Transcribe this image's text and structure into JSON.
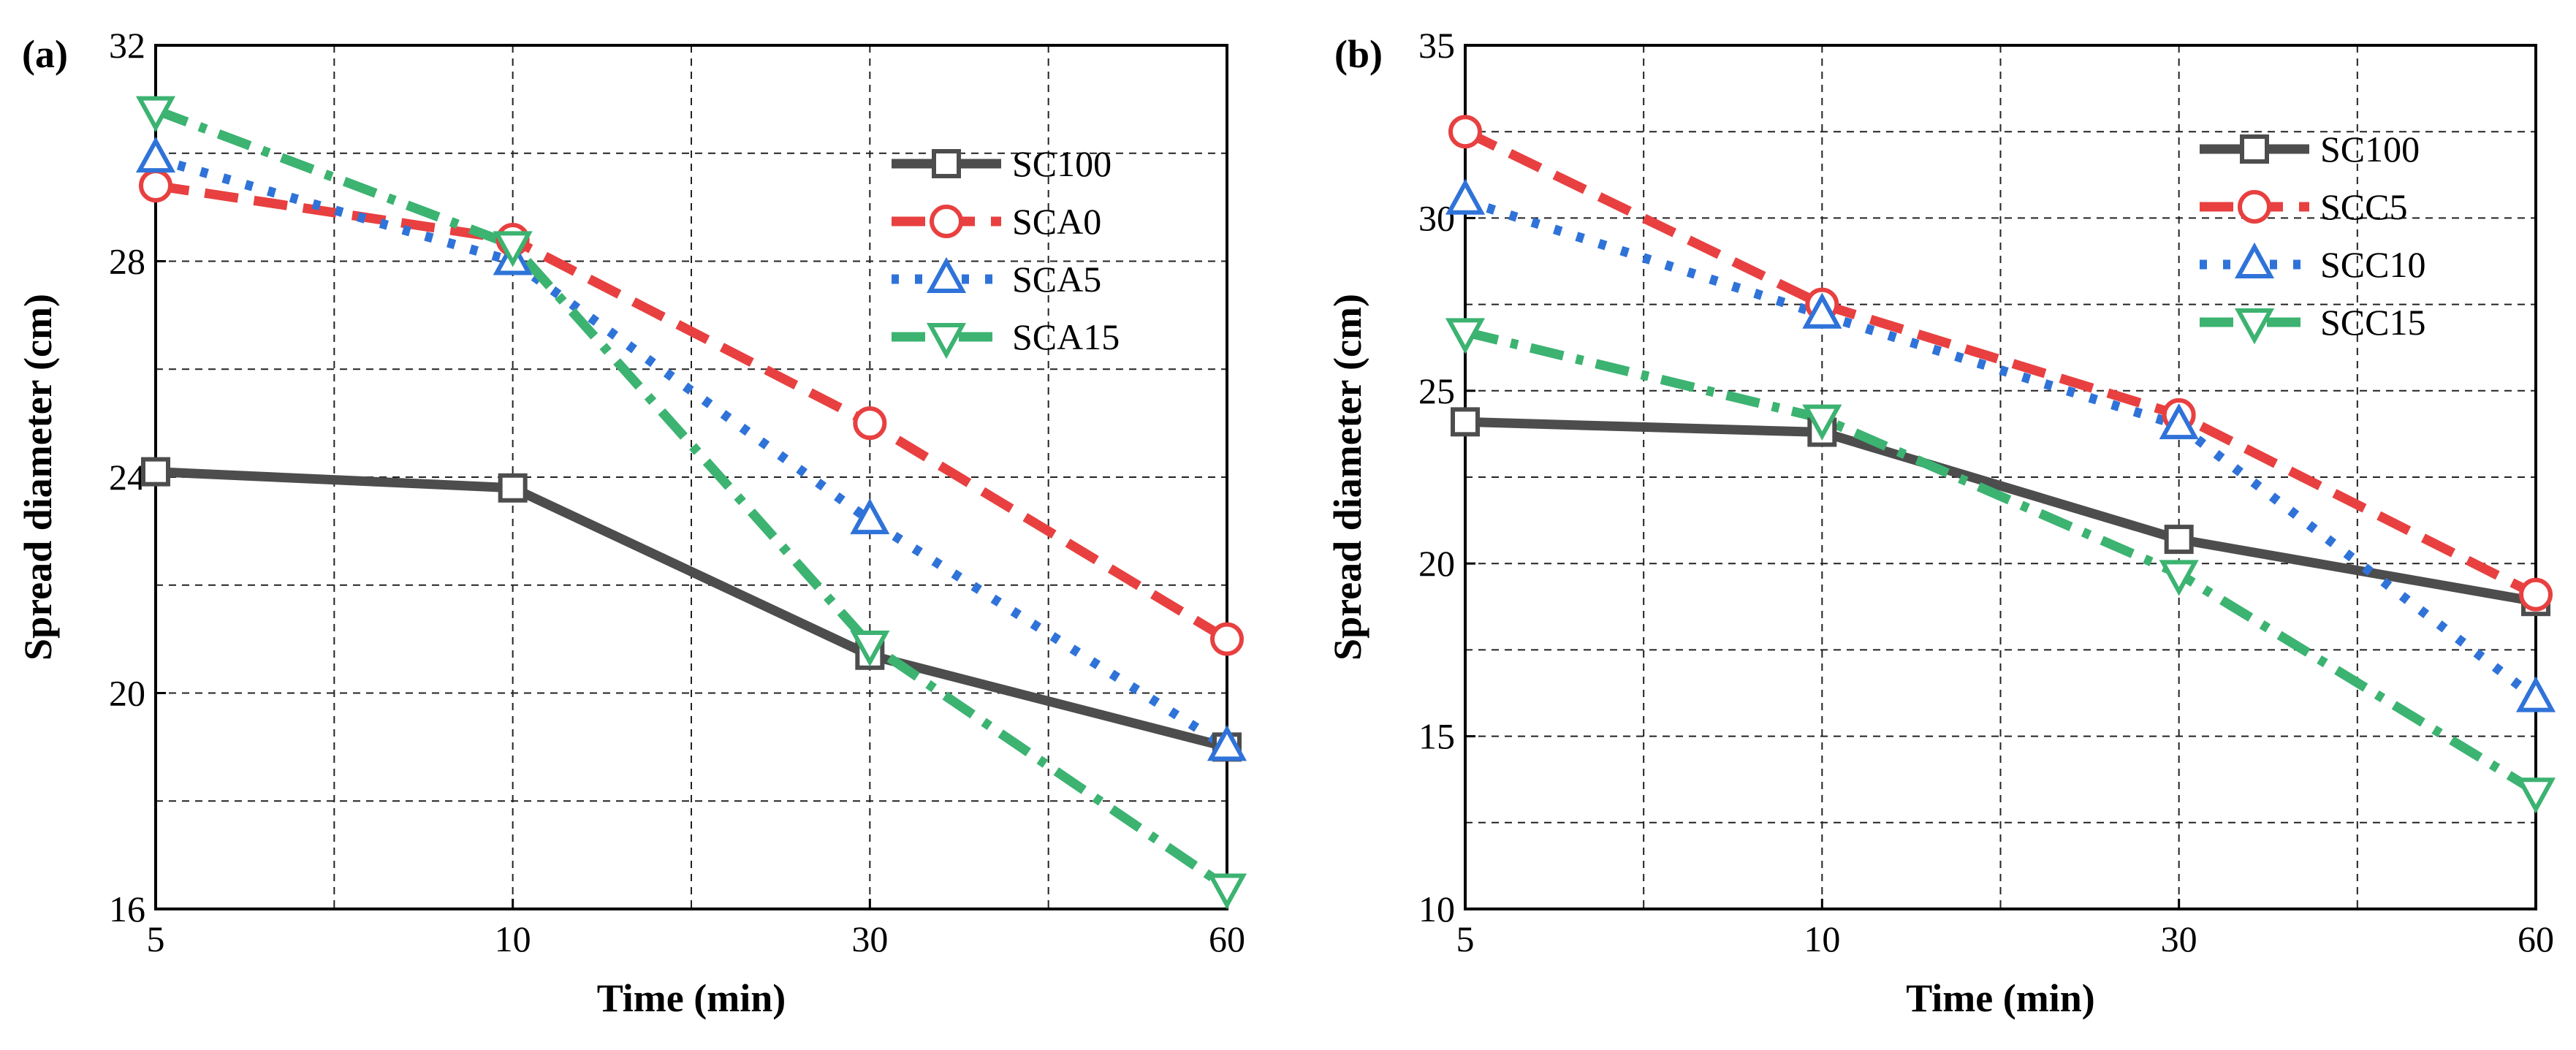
{
  "chart_data": [
    {
      "type": "line",
      "panel_label": "(a)",
      "xlabel": "Time (min)",
      "ylabel": "Spread diameter (cm)",
      "categories": [
        "5",
        "10",
        "30",
        "60"
      ],
      "ylim": [
        16,
        32
      ],
      "yticks": [
        "16",
        "20",
        "24",
        "28",
        "32"
      ],
      "ytick_values": [
        16,
        20,
        24,
        28,
        32
      ],
      "grid": true,
      "legend_position": "top-right",
      "series": [
        {
          "name": "SC100",
          "values": [
            24.1,
            23.8,
            20.7,
            19.0
          ],
          "color": "#4d4d4d",
          "marker": "square",
          "dash": "solid"
        },
        {
          "name": "SCA0",
          "values": [
            29.4,
            28.4,
            25.0,
            21.0
          ],
          "color": "#e84040",
          "marker": "circle",
          "dash": "dash"
        },
        {
          "name": "SCA5",
          "values": [
            29.9,
            28.0,
            23.2,
            19.0
          ],
          "color": "#2f73d9",
          "marker": "triangle-up",
          "dash": "dot"
        },
        {
          "name": "SCA15",
          "values": [
            30.8,
            28.3,
            20.9,
            16.4
          ],
          "color": "#3cb371",
          "marker": "triangle-down",
          "dash": "dashdot"
        }
      ]
    },
    {
      "type": "line",
      "panel_label": "(b)",
      "xlabel": "Time (min)",
      "ylabel": "Spread diameter (cm)",
      "categories": [
        "5",
        "10",
        "30",
        "60"
      ],
      "ylim": [
        10,
        35
      ],
      "yticks": [
        "10",
        "15",
        "20",
        "25",
        "30",
        "35"
      ],
      "ytick_values": [
        10,
        15,
        20,
        25,
        30,
        35
      ],
      "grid": true,
      "legend_position": "top-right",
      "series": [
        {
          "name": "SC100",
          "values": [
            24.1,
            23.8,
            20.7,
            18.9
          ],
          "color": "#4d4d4d",
          "marker": "square",
          "dash": "solid"
        },
        {
          "name": "SCC5",
          "values": [
            32.5,
            27.5,
            24.3,
            19.1
          ],
          "color": "#e84040",
          "marker": "circle",
          "dash": "dash"
        },
        {
          "name": "SCC10",
          "values": [
            30.5,
            27.2,
            24.0,
            16.1
          ],
          "color": "#2f73d9",
          "marker": "triangle-up",
          "dash": "dot"
        },
        {
          "name": "SCC15",
          "values": [
            26.7,
            24.2,
            19.7,
            13.4
          ],
          "color": "#3cb371",
          "marker": "triangle-down",
          "dash": "dashdot"
        }
      ]
    }
  ]
}
